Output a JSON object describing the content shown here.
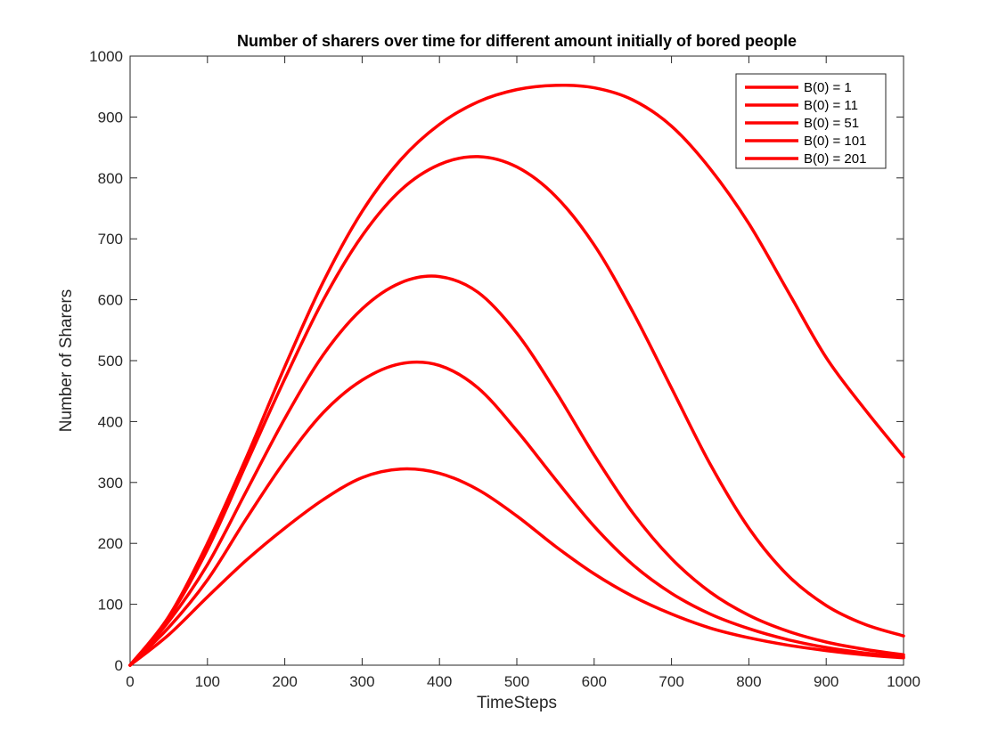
{
  "chart_data": {
    "type": "line",
    "title": "Number of sharers over time for different amount initially of bored people",
    "xlabel": "TimeSteps",
    "ylabel": "Number of Sharers",
    "xlim": [
      0,
      1000
    ],
    "ylim": [
      0,
      1000
    ],
    "x_ticks": [
      0,
      100,
      200,
      300,
      400,
      500,
      600,
      700,
      800,
      900,
      1000
    ],
    "y_ticks": [
      0,
      100,
      200,
      300,
      400,
      500,
      600,
      700,
      800,
      900,
      1000
    ],
    "grid": false,
    "legend_position": "top-right",
    "series_color": "#ff0000",
    "series": [
      {
        "name": "B(0) = 1",
        "points": [
          [
            0,
            0
          ],
          [
            50,
            80
          ],
          [
            100,
            200
          ],
          [
            150,
            340
          ],
          [
            200,
            490
          ],
          [
            250,
            630
          ],
          [
            300,
            745
          ],
          [
            350,
            830
          ],
          [
            400,
            888
          ],
          [
            450,
            925
          ],
          [
            500,
            945
          ],
          [
            550,
            952
          ],
          [
            600,
            948
          ],
          [
            650,
            928
          ],
          [
            700,
            885
          ],
          [
            750,
            815
          ],
          [
            800,
            725
          ],
          [
            850,
            615
          ],
          [
            900,
            505
          ],
          [
            950,
            420
          ],
          [
            1000,
            342
          ]
        ]
      },
      {
        "name": "B(0) = 11",
        "points": [
          [
            0,
            0
          ],
          [
            50,
            78
          ],
          [
            100,
            190
          ],
          [
            150,
            330
          ],
          [
            200,
            470
          ],
          [
            250,
            600
          ],
          [
            300,
            705
          ],
          [
            350,
            780
          ],
          [
            400,
            822
          ],
          [
            450,
            835
          ],
          [
            500,
            818
          ],
          [
            550,
            770
          ],
          [
            600,
            690
          ],
          [
            650,
            580
          ],
          [
            700,
            455
          ],
          [
            750,
            330
          ],
          [
            800,
            225
          ],
          [
            850,
            148
          ],
          [
            900,
            98
          ],
          [
            950,
            67
          ],
          [
            1000,
            48
          ]
        ]
      },
      {
        "name": "B(0) = 51",
        "points": [
          [
            0,
            0
          ],
          [
            50,
            72
          ],
          [
            100,
            165
          ],
          [
            150,
            285
          ],
          [
            200,
            405
          ],
          [
            250,
            510
          ],
          [
            300,
            585
          ],
          [
            350,
            628
          ],
          [
            400,
            638
          ],
          [
            450,
            612
          ],
          [
            500,
            545
          ],
          [
            550,
            450
          ],
          [
            600,
            345
          ],
          [
            650,
            250
          ],
          [
            700,
            175
          ],
          [
            750,
            120
          ],
          [
            800,
            82
          ],
          [
            850,
            56
          ],
          [
            900,
            38
          ],
          [
            950,
            26
          ],
          [
            1000,
            17
          ]
        ]
      },
      {
        "name": "B(0) = 101",
        "points": [
          [
            0,
            0
          ],
          [
            50,
            62
          ],
          [
            100,
            140
          ],
          [
            150,
            240
          ],
          [
            200,
            335
          ],
          [
            250,
            415
          ],
          [
            300,
            468
          ],
          [
            350,
            495
          ],
          [
            400,
            492
          ],
          [
            450,
            455
          ],
          [
            500,
            385
          ],
          [
            550,
            305
          ],
          [
            600,
            228
          ],
          [
            650,
            165
          ],
          [
            700,
            118
          ],
          [
            750,
            84
          ],
          [
            800,
            60
          ],
          [
            850,
            42
          ],
          [
            900,
            29
          ],
          [
            950,
            20
          ],
          [
            1000,
            14
          ]
        ]
      },
      {
        "name": "B(0) = 201",
        "points": [
          [
            0,
            0
          ],
          [
            50,
            50
          ],
          [
            100,
            112
          ],
          [
            150,
            172
          ],
          [
            200,
            225
          ],
          [
            250,
            272
          ],
          [
            300,
            308
          ],
          [
            350,
            322
          ],
          [
            400,
            315
          ],
          [
            450,
            288
          ],
          [
            500,
            245
          ],
          [
            550,
            195
          ],
          [
            600,
            150
          ],
          [
            650,
            113
          ],
          [
            700,
            84
          ],
          [
            750,
            61
          ],
          [
            800,
            45
          ],
          [
            850,
            33
          ],
          [
            900,
            24
          ],
          [
            950,
            17
          ],
          [
            1000,
            12
          ]
        ]
      }
    ]
  }
}
